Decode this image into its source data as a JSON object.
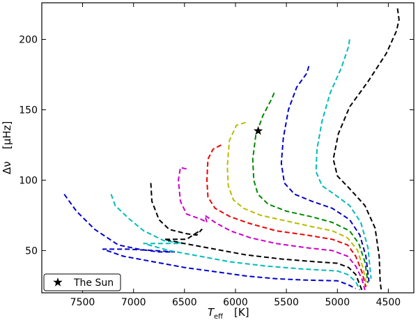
{
  "chart_data": {
    "type": "line",
    "title": "",
    "xlabel": "",
    "ylabel": "",
    "xlim": [
      7900,
      4250
    ],
    "ylim": [
      226,
      20
    ],
    "xticks": [
      7500,
      7000,
      6500,
      6000,
      5500,
      5000,
      4500
    ],
    "yticks": [
      50,
      100,
      150,
      200
    ],
    "grid": false,
    "line_style": "dashed",
    "series": [
      {
        "color": "#0000cc",
        "points": [
          [
            7680,
            90
          ],
          [
            7560,
            78
          ],
          [
            7380,
            65
          ],
          [
            7150,
            54
          ],
          [
            6950,
            51
          ],
          [
            6750,
            49
          ],
          [
            6600,
            49
          ],
          [
            6800,
            50
          ],
          [
            7050,
            51
          ],
          [
            7300,
            51
          ],
          [
            7100,
            46
          ],
          [
            6800,
            42
          ],
          [
            6500,
            38
          ],
          [
            6200,
            35
          ],
          [
            5900,
            32
          ],
          [
            5600,
            30
          ],
          [
            5300,
            29
          ],
          [
            5000,
            28.5
          ],
          [
            4900,
            26
          ],
          [
            4820,
            23
          ]
        ]
      },
      {
        "color": "#00bbbb",
        "points": [
          [
            7220,
            90
          ],
          [
            7180,
            82
          ],
          [
            7050,
            73
          ],
          [
            6900,
            64
          ],
          [
            6700,
            57
          ],
          [
            6500,
            55
          ],
          [
            6900,
            55
          ],
          [
            6650,
            50
          ],
          [
            6350,
            46
          ],
          [
            6050,
            42
          ],
          [
            5700,
            39
          ],
          [
            5350,
            37
          ],
          [
            5000,
            35.5
          ],
          [
            4900,
            33
          ],
          [
            4820,
            28
          ],
          [
            4780,
            22
          ]
        ]
      },
      {
        "color": "#000000",
        "points": [
          [
            6830,
            98
          ],
          [
            6820,
            85
          ],
          [
            6750,
            72
          ],
          [
            6650,
            65
          ],
          [
            6480,
            62
          ],
          [
            6380,
            61
          ],
          [
            6330,
            65
          ],
          [
            6480,
            58
          ],
          [
            6700,
            58
          ],
          [
            6500,
            55
          ],
          [
            6200,
            51
          ],
          [
            5900,
            47
          ],
          [
            5550,
            44
          ],
          [
            5200,
            42
          ],
          [
            5000,
            41
          ],
          [
            4890,
            38
          ],
          [
            4820,
            33
          ],
          [
            4760,
            22
          ]
        ]
      },
      {
        "color": "#cc00cc",
        "points": [
          [
            6480,
            108
          ],
          [
            6540,
            109
          ],
          [
            6560,
            100
          ],
          [
            6540,
            85
          ],
          [
            6480,
            76
          ],
          [
            6330,
            72
          ],
          [
            6280,
            70
          ],
          [
            6300,
            75
          ],
          [
            6200,
            70
          ],
          [
            6050,
            64
          ],
          [
            5850,
            59
          ],
          [
            5600,
            55
          ],
          [
            5300,
            52
          ],
          [
            5050,
            50
          ],
          [
            4900,
            46
          ],
          [
            4820,
            39
          ],
          [
            4760,
            30
          ],
          [
            4730,
            22
          ]
        ]
      },
      {
        "color": "#ee0000",
        "points": [
          [
            6140,
            125
          ],
          [
            6220,
            122
          ],
          [
            6270,
            115
          ],
          [
            6280,
            100
          ],
          [
            6270,
            88
          ],
          [
            6200,
            80
          ],
          [
            6050,
            74
          ],
          [
            5850,
            69
          ],
          [
            5600,
            64
          ],
          [
            5300,
            61
          ],
          [
            5050,
            58
          ],
          [
            4900,
            54
          ],
          [
            4820,
            46
          ],
          [
            4760,
            35
          ],
          [
            4720,
            24
          ]
        ]
      },
      {
        "color": "#bbbb00",
        "points": [
          [
            5900,
            141
          ],
          [
            5990,
            139
          ],
          [
            6060,
            128
          ],
          [
            6080,
            110
          ],
          [
            6070,
            96
          ],
          [
            6020,
            86
          ],
          [
            5920,
            80
          ],
          [
            5750,
            75
          ],
          [
            5500,
            71
          ],
          [
            5250,
            67
          ],
          [
            5050,
            64
          ],
          [
            4900,
            59
          ],
          [
            4800,
            50
          ],
          [
            4750,
            38
          ],
          [
            4710,
            25
          ]
        ]
      },
      {
        "color": "#008800",
        "points": [
          [
            5620,
            162
          ],
          [
            5650,
            157
          ],
          [
            5730,
            146
          ],
          [
            5800,
            132
          ],
          [
            5830,
            115
          ],
          [
            5820,
            100
          ],
          [
            5780,
            90
          ],
          [
            5680,
            83
          ],
          [
            5500,
            78
          ],
          [
            5250,
            74
          ],
          [
            5050,
            70
          ],
          [
            4880,
            64
          ],
          [
            4790,
            55
          ],
          [
            4730,
            42
          ],
          [
            4700,
            27
          ]
        ]
      },
      {
        "color": "#0000cc",
        "points": [
          [
            5280,
            181
          ],
          [
            5300,
            176
          ],
          [
            5400,
            166
          ],
          [
            5480,
            150
          ],
          [
            5530,
            130
          ],
          [
            5550,
            112
          ],
          [
            5520,
            98
          ],
          [
            5420,
            90
          ],
          [
            5250,
            85
          ],
          [
            5050,
            80
          ],
          [
            4880,
            72
          ],
          [
            4780,
            61
          ],
          [
            4720,
            46
          ],
          [
            4690,
            28
          ]
        ]
      },
      {
        "color": "#00bbbb",
        "points": [
          [
            4880,
            200
          ],
          [
            4890,
            195
          ],
          [
            4960,
            180
          ],
          [
            5070,
            162
          ],
          [
            5150,
            142
          ],
          [
            5200,
            122
          ],
          [
            5210,
            106
          ],
          [
            5150,
            96
          ],
          [
            5030,
            90
          ],
          [
            4880,
            82
          ],
          [
            4770,
            70
          ],
          [
            4700,
            52
          ],
          [
            4670,
            30
          ]
        ]
      },
      {
        "color": "#000000",
        "points": [
          [
            4410,
            222
          ],
          [
            4395,
            214
          ],
          [
            4420,
            206
          ],
          [
            4520,
            190
          ],
          [
            4700,
            170
          ],
          [
            4880,
            152
          ],
          [
            4990,
            133
          ],
          [
            5040,
            115
          ],
          [
            5000,
            103
          ],
          [
            4880,
            94
          ],
          [
            4730,
            82
          ],
          [
            4630,
            66
          ],
          [
            4590,
            46
          ],
          [
            4580,
            28
          ],
          [
            4570,
            22
          ]
        ]
      }
    ],
    "highlight_point": {
      "x": 5777,
      "y": 135,
      "marker": "star",
      "label": "The Sun"
    },
    "legend": {
      "placement": "lower-left",
      "entries": [
        {
          "marker": "star",
          "label": "The Sun"
        }
      ]
    }
  }
}
